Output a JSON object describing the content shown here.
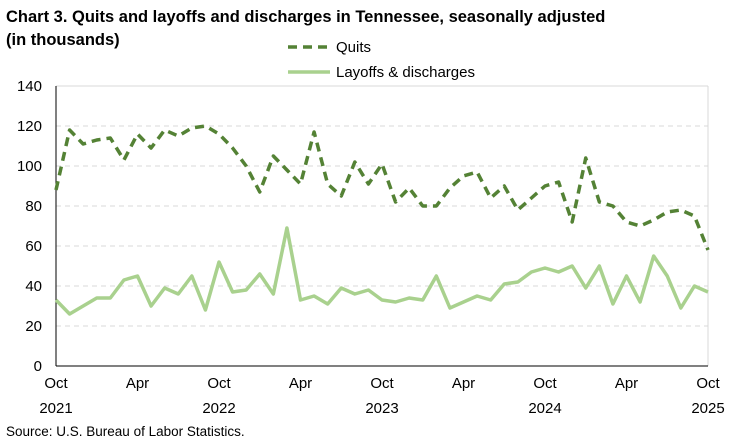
{
  "chart_data": {
    "type": "line",
    "title": "Chart 3. Quits and layoffs and discharges in Tennessee, seasonally adjusted (in thousands)",
    "source": "Source: U.S. Bureau of Labor Statistics.",
    "ylim": [
      0,
      140
    ],
    "yticks": [
      0,
      20,
      40,
      60,
      80,
      100,
      120,
      140
    ],
    "xticks": [
      {
        "month": "Oct",
        "year": "2021"
      },
      {
        "month": "Apr",
        "year": ""
      },
      {
        "month": "Oct",
        "year": "2022"
      },
      {
        "month": "Apr",
        "year": ""
      },
      {
        "month": "Oct",
        "year": "2023"
      },
      {
        "month": "Apr",
        "year": ""
      },
      {
        "month": "Oct",
        "year": "2024"
      },
      {
        "month": "Apr",
        "year": ""
      },
      {
        "month": "Oct",
        "year": "2025"
      }
    ],
    "x_start": "2021-10",
    "x_end": "2025-10",
    "grid": true,
    "legend_placement": "top-center",
    "series": [
      {
        "name": "Quits",
        "color": "#548235",
        "style": "dashed",
        "values": [
          88,
          118,
          111,
          113,
          114,
          103,
          116,
          109,
          118,
          115,
          119,
          120,
          116,
          109,
          100,
          87,
          105,
          98,
          91,
          117,
          91,
          85,
          102,
          91,
          101,
          82,
          89,
          80,
          80,
          89,
          95,
          97,
          84,
          90,
          78,
          84,
          90,
          92,
          72,
          104,
          82,
          80,
          72,
          70,
          73,
          77,
          78,
          75,
          58
        ]
      },
      {
        "name": "Layoffs & discharges",
        "color": "#a9d18e",
        "style": "solid",
        "values": [
          33,
          26,
          30,
          34,
          34,
          43,
          45,
          30,
          39,
          36,
          45,
          28,
          52,
          37,
          38,
          46,
          36,
          69,
          33,
          35,
          31,
          39,
          36,
          38,
          33,
          32,
          34,
          33,
          45,
          29,
          32,
          35,
          33,
          41,
          42,
          47,
          49,
          47,
          50,
          39,
          50,
          31,
          45,
          32,
          55,
          45,
          29,
          40,
          37
        ]
      }
    ]
  }
}
